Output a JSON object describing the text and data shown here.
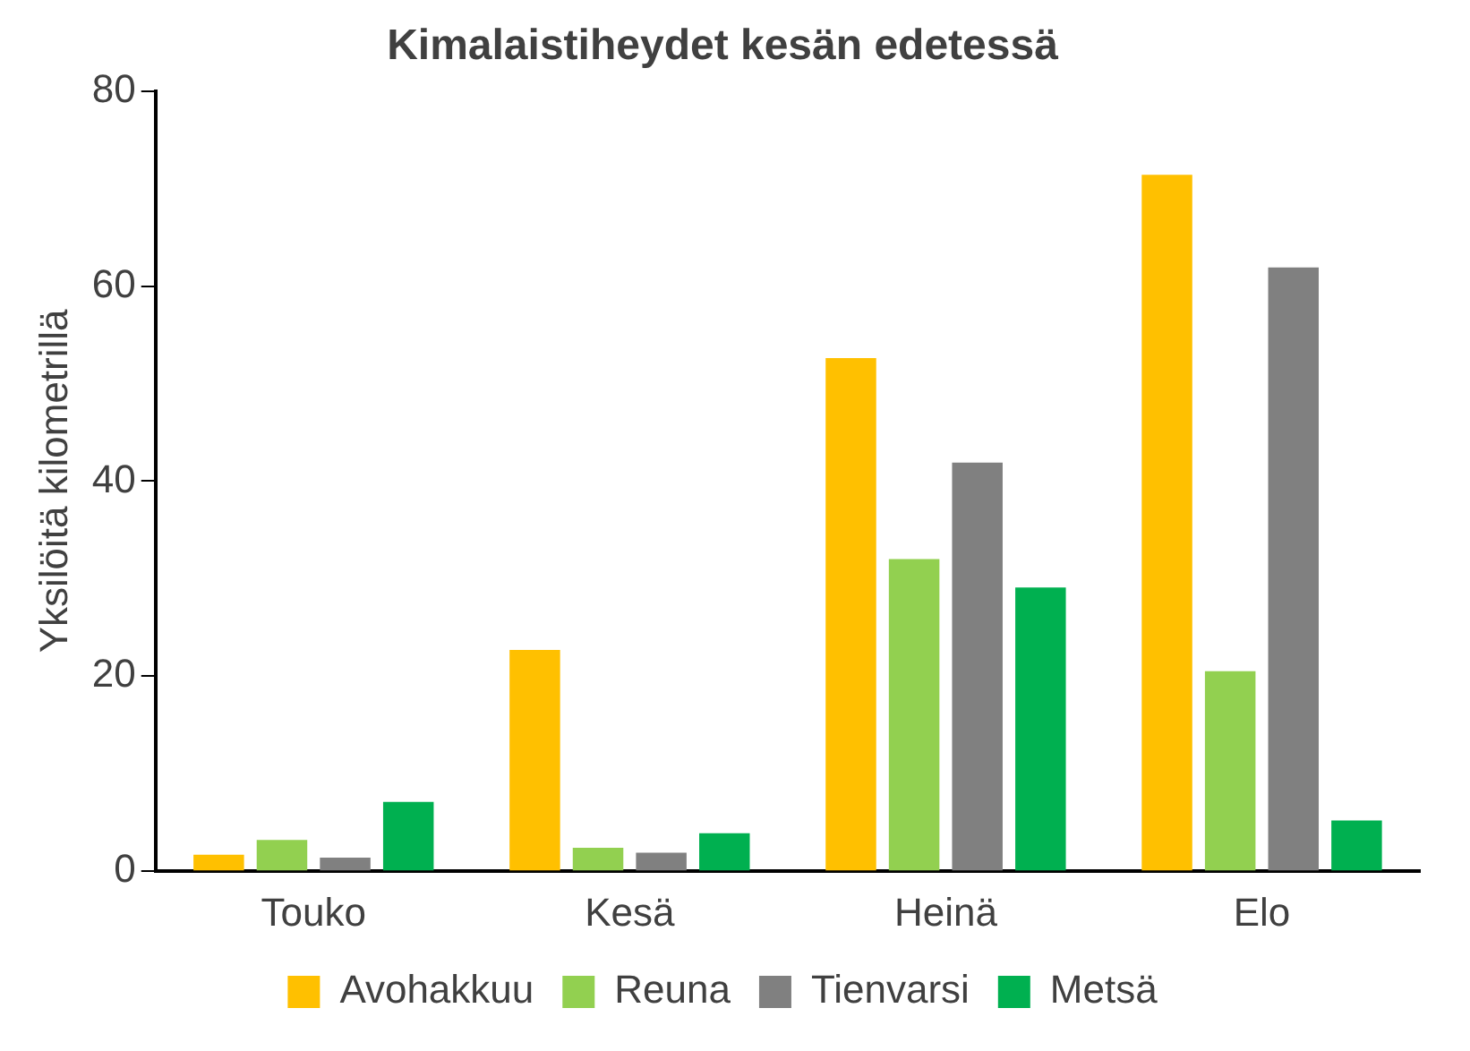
{
  "chart_data": {
    "type": "bar",
    "title": "Kimalaistiheydet kesän edetessä",
    "ylabel": "Yksilöitä kilometrillä",
    "categories": [
      "Touko",
      "Kesä",
      "Heinä",
      "Elo"
    ],
    "series": [
      {
        "name": "Avohakkuu",
        "color": "#ffc000",
        "values": [
          1.7,
          22.7,
          52.6,
          71.4
        ]
      },
      {
        "name": "Reuna",
        "color": "#92d050",
        "values": [
          3.2,
          2.4,
          32,
          20.5
        ]
      },
      {
        "name": "Tienvarsi",
        "color": "#808080",
        "values": [
          1.4,
          1.9,
          41.9,
          61.9
        ]
      },
      {
        "name": "Metsä",
        "color": "#00b050",
        "values": [
          7.1,
          3.9,
          29.1,
          5.2
        ]
      }
    ],
    "ylim": [
      0,
      80
    ],
    "yticks": [
      0,
      20,
      40,
      60,
      80
    ],
    "grid": false,
    "legend": "bottom"
  }
}
